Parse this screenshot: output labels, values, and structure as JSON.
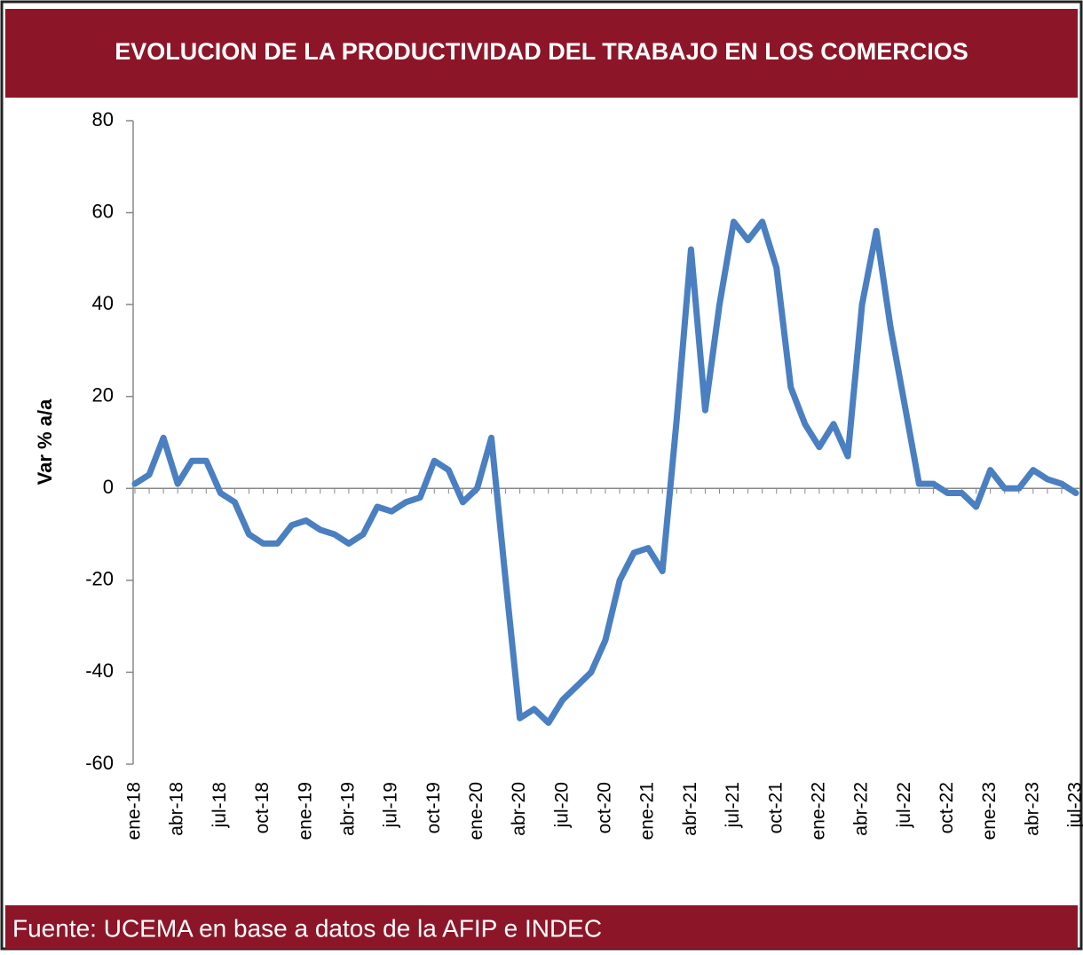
{
  "chart_data": {
    "type": "line",
    "title": "EVOLUCION DE LA PRODUCTIVIDAD DEL TRABAJO EN LOS COMERCIOS",
    "source": "Fuente: UCEMA en base a datos de la AFIP e INDEC",
    "y_label": "Var % a/a",
    "categories": [
      "ene-18",
      null,
      null,
      "abr-18",
      null,
      null,
      "jul-18",
      null,
      null,
      "oct-18",
      null,
      null,
      "ene-19",
      null,
      null,
      "abr-19",
      null,
      null,
      "jul-19",
      null,
      null,
      "oct-19",
      null,
      null,
      "ene-20",
      null,
      null,
      "abr-20",
      null,
      null,
      "jul-20",
      null,
      null,
      "oct-20",
      null,
      null,
      "ene-21",
      null,
      null,
      "abr-21",
      null,
      null,
      "jul-21",
      null,
      null,
      "oct-21",
      null,
      null,
      "ene-22",
      null,
      null,
      "abr-22",
      null,
      null,
      "jul-22",
      null,
      null,
      "oct-22",
      null,
      null,
      "ene-23",
      null,
      null,
      "abr-23",
      null,
      null,
      "jul-23"
    ],
    "series": [
      {
        "name": "Var % a/a",
        "color": "#4a7fc1",
        "values": [
          1,
          3,
          11,
          1,
          6,
          6,
          -1,
          -3,
          -10,
          -12,
          -12,
          -8,
          -7,
          -9,
          -10,
          -12,
          -10,
          -4,
          -5,
          -3,
          -2,
          6,
          4,
          -3,
          0,
          11,
          -20,
          -50,
          -48,
          -51,
          -46,
          -43,
          -40,
          -33,
          -20,
          -14,
          -13,
          -18,
          15,
          52,
          17,
          40,
          58,
          54,
          58,
          48,
          22,
          14,
          9,
          14,
          7,
          40,
          56,
          35,
          18,
          1,
          1,
          -1,
          -1,
          -4,
          4,
          0,
          0,
          4,
          2,
          1,
          -1
        ]
      }
    ],
    "ylim": [
      -60,
      80
    ],
    "yticks": [
      -60,
      -40,
      -20,
      0,
      20,
      40,
      60,
      80
    ],
    "zero_line": true
  }
}
